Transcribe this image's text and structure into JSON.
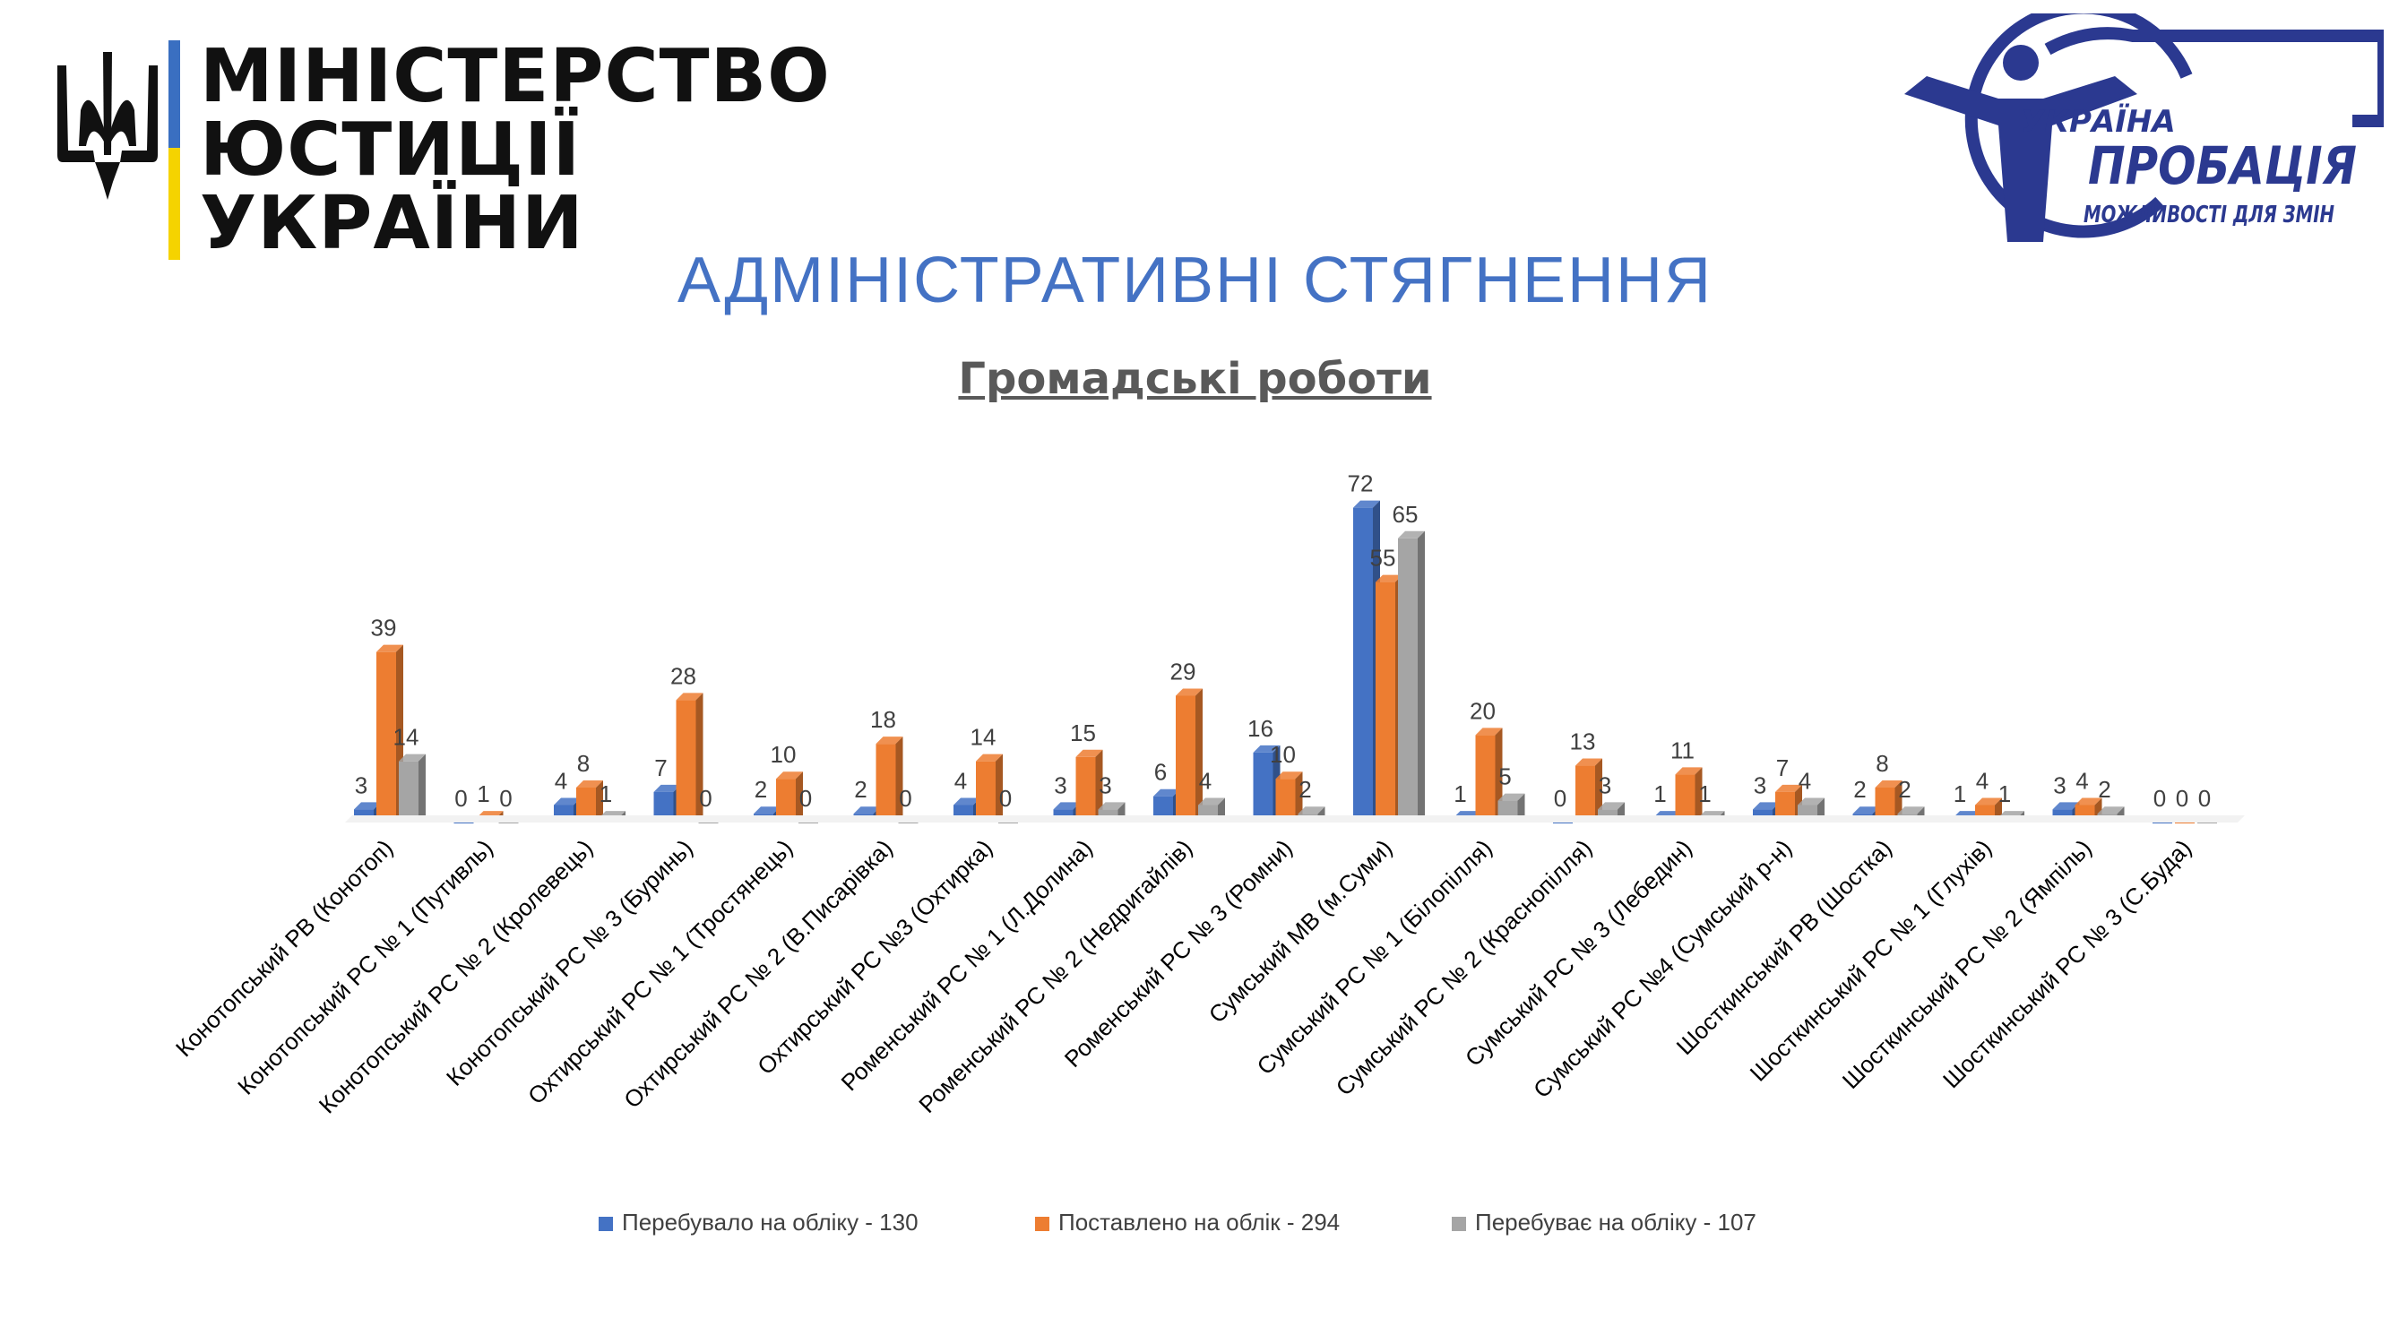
{
  "header": {
    "ministry_line1": "МІНІСТЕРСТВО",
    "ministry_line2": "ЮСТИЦІЇ УКРАЇНИ",
    "probation_logo_line1": "УКРАЇНА",
    "probation_logo_line2": "ПРОБАЦІЯ",
    "probation_logo_line3": "МОЖЛИВОСТІ ДЛЯ ЗМІН"
  },
  "slide_title": "АДМІНІСТРАТИВНІ СТЯГНЕННЯ",
  "colors": {
    "title": "#4472C4",
    "chart_title": "#595959",
    "flag_blue": "#3A6FC1",
    "flag_yellow": "#F5D300",
    "logo": "#2B3990",
    "series": [
      "#4472C4",
      "#ED7D31",
      "#A5A5A5"
    ],
    "label": "#404040"
  },
  "chart_data": {
    "type": "bar",
    "title": "Громадські роботи",
    "categories": [
      "Конотопський РВ (Конотоп)",
      "Конотопський РС № 1 (Путивль)",
      "Конотопський РС № 2 (Кролевець)",
      "Конотопський РС № 3 (Буринь)",
      "Охтирський РС № 1 (Тростянець)",
      "Охтирський РС № 2 (В.Писарівка)",
      "Охтирський РС №3 (Охтирка)",
      "Роменський РС № 1 (Л.Долина)",
      "Роменський РС № 2 (Недригайлів)",
      "Роменський РС № 3 (Ромни)",
      "Сумський МВ (м.Суми)",
      "Сумський РС № 1 (Білопілля)",
      "Сумський РС № 2 (Краснопілля)",
      "Сумський РС № 3 (Лебедин)",
      "Сумський РС №4 (Сумський р-н)",
      "Шосткинський РВ (Шостка)",
      "Шосткинський РС № 1 (Глухів)",
      "Шосткинський РС № 2 (Ямпіль)",
      "Шосткинський РС № 3 (С.Буда)"
    ],
    "series": [
      {
        "name": "Перебувало на обліку - 130",
        "values": [
          3,
          0,
          4,
          7,
          2,
          2,
          4,
          3,
          6,
          16,
          72,
          1,
          0,
          1,
          3,
          2,
          1,
          3,
          0
        ]
      },
      {
        "name": "Поставлено на облік - 294",
        "values": [
          39,
          1,
          8,
          28,
          10,
          18,
          14,
          15,
          29,
          10,
          55,
          20,
          13,
          11,
          7,
          8,
          4,
          4,
          0
        ]
      },
      {
        "name": "Перебуває на обліку - 107",
        "values": [
          14,
          0,
          1,
          0,
          0,
          0,
          0,
          3,
          4,
          2,
          65,
          5,
          3,
          1,
          4,
          2,
          1,
          2,
          0
        ]
      }
    ],
    "xlabel": "",
    "ylabel": "",
    "ylim": [
      0,
      75
    ],
    "grid": false,
    "legend": "bottom"
  }
}
